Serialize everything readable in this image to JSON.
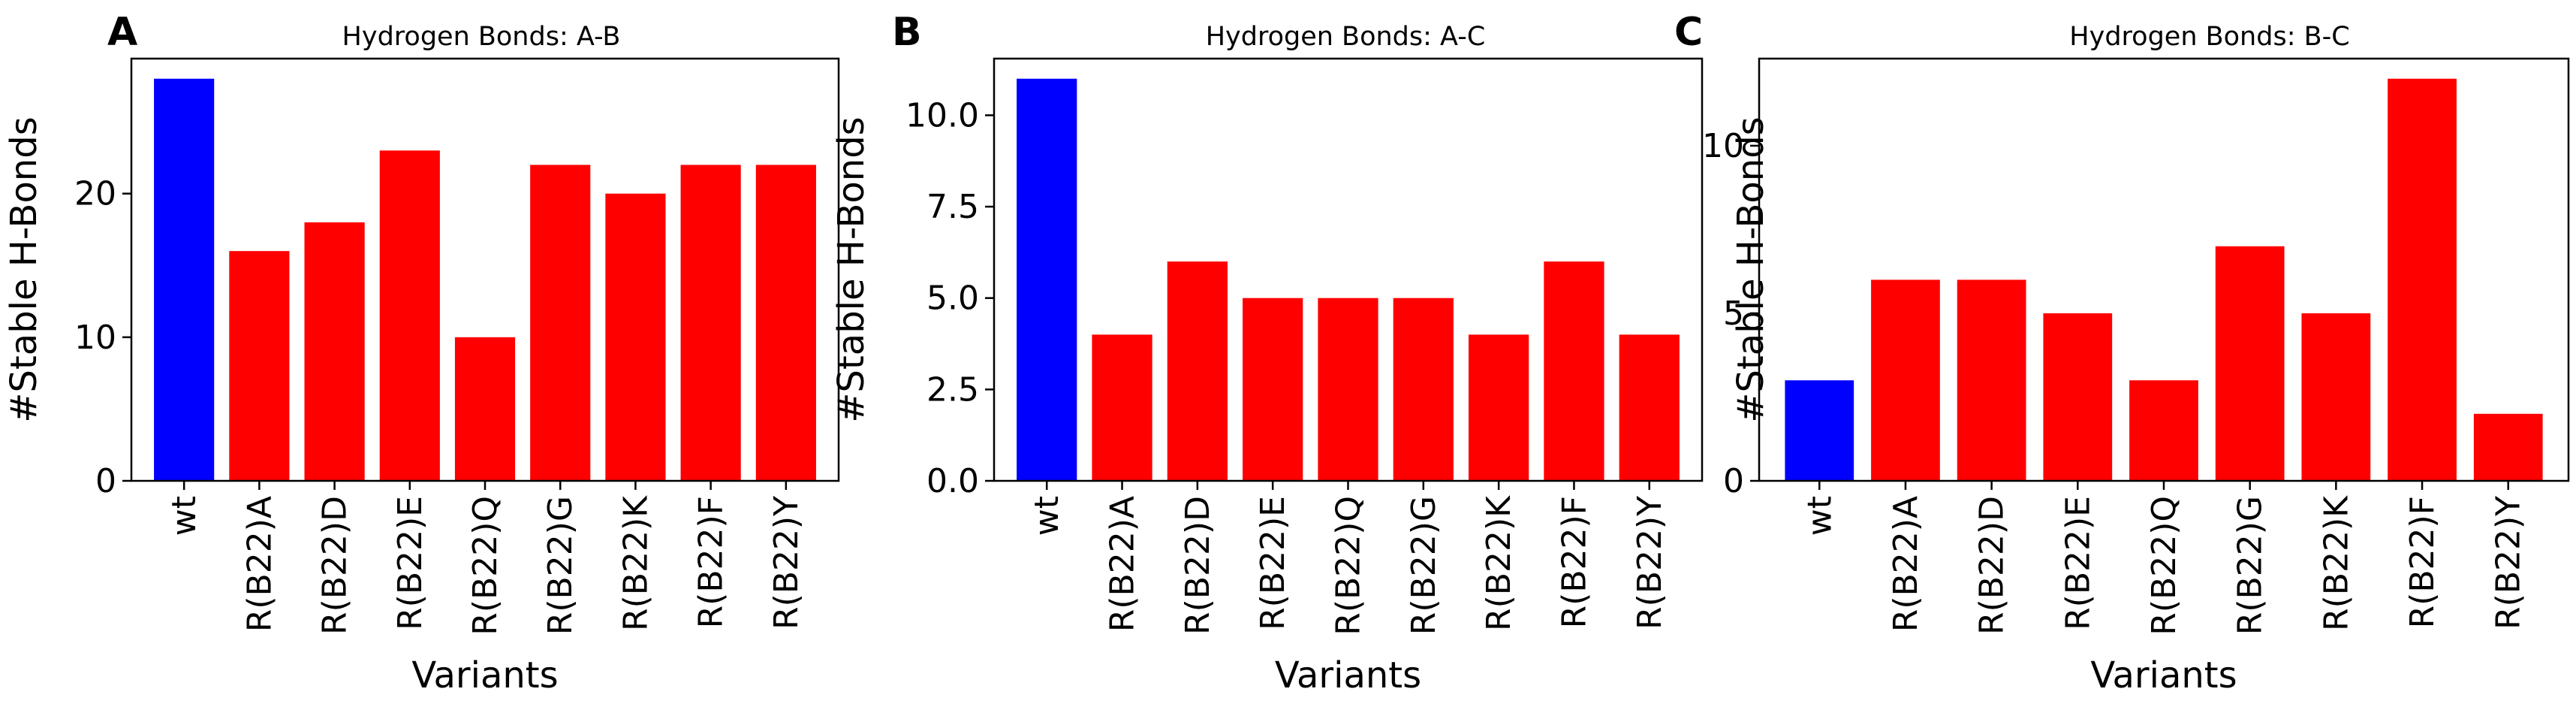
{
  "figure": {
    "panels": [
      {
        "letter": "A",
        "title": "Hydrogen Bonds: A-B"
      },
      {
        "letter": "B",
        "title": "Hydrogen Bonds: A-C"
      },
      {
        "letter": "C",
        "title": "Hydrogen Bonds: B-C"
      }
    ]
  },
  "colors": {
    "wildtype": "#0000ff",
    "variant": "#ff0000",
    "axis": "#000000",
    "background": "#ffffff"
  },
  "chart_data": [
    {
      "type": "bar",
      "title": "Hydrogen Bonds: A-B",
      "xlabel": "Variants",
      "ylabel": "#Stable H-Bonds",
      "categories": [
        "wt",
        "R(B22)A",
        "R(B22)D",
        "R(B22)E",
        "R(B22)Q",
        "R(B22)G",
        "R(B22)K",
        "R(B22)F",
        "R(B22)Y"
      ],
      "values": [
        28,
        16,
        18,
        23,
        10,
        22,
        20,
        22,
        22
      ],
      "bar_colors": [
        "#0000ff",
        "#ff0000",
        "#ff0000",
        "#ff0000",
        "#ff0000",
        "#ff0000",
        "#ff0000",
        "#ff0000",
        "#ff0000"
      ],
      "ylim": [
        0,
        29.4
      ],
      "yticks": [
        0,
        10,
        20
      ],
      "ytick_labels": [
        "0",
        "10",
        "20"
      ],
      "grid": false
    },
    {
      "type": "bar",
      "title": "Hydrogen Bonds: A-C",
      "xlabel": "Variants",
      "ylabel": "#Stable H-Bonds",
      "categories": [
        "wt",
        "R(B22)A",
        "R(B22)D",
        "R(B22)E",
        "R(B22)Q",
        "R(B22)G",
        "R(B22)K",
        "R(B22)F",
        "R(B22)Y"
      ],
      "values": [
        11,
        4,
        6,
        5,
        5,
        5,
        4,
        6,
        4
      ],
      "bar_colors": [
        "#0000ff",
        "#ff0000",
        "#ff0000",
        "#ff0000",
        "#ff0000",
        "#ff0000",
        "#ff0000",
        "#ff0000",
        "#ff0000"
      ],
      "ylim": [
        0,
        11.55
      ],
      "yticks": [
        0,
        2.5,
        5,
        7.5,
        10
      ],
      "ytick_labels": [
        "0.0",
        "2.5",
        "5.0",
        "7.5",
        "10.0"
      ],
      "grid": false
    },
    {
      "type": "bar",
      "title": "Hydrogen Bonds: B-C",
      "xlabel": "Variants",
      "ylabel": "#Stable H-Bonds",
      "categories": [
        "wt",
        "R(B22)A",
        "R(B22)D",
        "R(B22)E",
        "R(B22)Q",
        "R(B22)G",
        "R(B22)K",
        "R(B22)F",
        "R(B22)Y"
      ],
      "values": [
        3,
        6,
        6,
        5,
        3,
        7,
        5,
        12,
        2
      ],
      "bar_colors": [
        "#0000ff",
        "#ff0000",
        "#ff0000",
        "#ff0000",
        "#ff0000",
        "#ff0000",
        "#ff0000",
        "#ff0000",
        "#ff0000"
      ],
      "ylim": [
        0,
        12.6
      ],
      "yticks": [
        0,
        5,
        10
      ],
      "ytick_labels": [
        "0",
        "5",
        "10"
      ],
      "grid": false
    }
  ]
}
